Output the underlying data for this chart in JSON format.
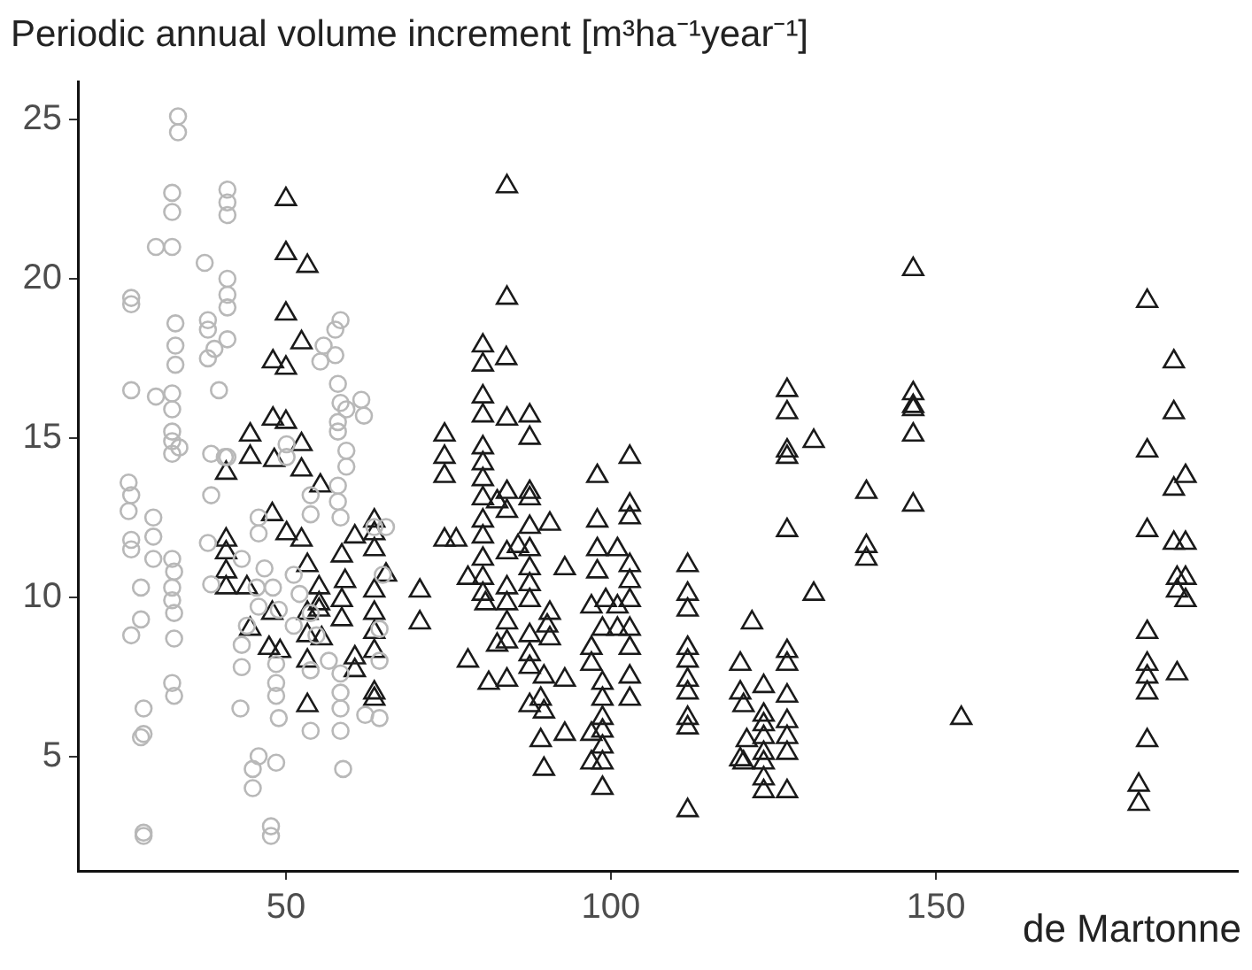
{
  "chart_data": {
    "type": "scatter",
    "title": "Periodic annual volume increment [m³ha⁻¹year⁻¹]",
    "xlabel": "de Martonne",
    "xlim": [
      18,
      196.5
    ],
    "ylim": [
      1.4,
      26.2
    ],
    "xticks": [
      50,
      100,
      150
    ],
    "yticks": [
      5,
      10,
      15,
      20,
      25
    ],
    "series": [
      {
        "color": "#b8b8b8",
        "marker": "circle",
        "x": [
          33.4,
          33.4,
          32.5,
          32.5,
          41,
          41,
          41,
          30,
          32.5,
          37.5,
          41,
          41,
          41,
          26.2,
          26.2,
          33,
          38,
          38,
          33,
          41,
          39,
          38,
          33,
          58.4,
          57.6,
          55.8,
          55.3,
          57.6,
          26.2,
          30,
          32.5,
          32.5,
          39.7,
          58,
          58.4,
          61.6,
          59.3,
          62,
          58,
          32.5,
          32.5,
          33.6,
          32.5,
          38.5,
          41,
          50.1,
          50.1,
          58,
          59.3,
          59.3,
          25.8,
          26.2,
          25.8,
          29.6,
          29.6,
          38.5,
          53.8,
          53.8,
          58,
          58,
          58.4,
          26.2,
          26.2,
          29.6,
          32.5,
          32.8,
          32.5,
          32.5,
          32.8,
          27.7,
          27.7,
          26.2,
          32.8,
          38,
          43.2,
          45.8,
          45.8,
          46.7,
          45.5,
          45.8,
          48,
          48.9,
          43.2,
          43.2,
          48.5,
          48.5,
          48.5,
          48.9,
          51.2,
          52.1,
          53.8,
          54.7,
          56.6,
          58.4,
          58.4,
          58.4,
          53.8,
          58.4,
          58.8,
          63.6,
          65.4,
          64.9,
          64.4,
          64.4,
          64.4,
          62.2,
          43,
          32.5,
          32.8,
          28.1,
          28.1,
          27.7,
          45.8,
          44.9,
          48.5,
          44.9,
          28.1,
          28.1,
          47.7,
          47.7,
          38.5,
          51.2,
          53.8,
          44,
          40.6
        ],
        "values": [
          25.1,
          24.6,
          22.7,
          22.1,
          22.8,
          22.4,
          22,
          21,
          21,
          20.5,
          20,
          19.5,
          19.1,
          19.4,
          19.2,
          18.6,
          18.7,
          18.4,
          17.9,
          18.1,
          17.8,
          17.5,
          17.3,
          18.7,
          18.4,
          17.9,
          17.4,
          17.6,
          16.5,
          16.3,
          16.4,
          15.9,
          16.5,
          16.7,
          16.1,
          16.2,
          15.9,
          15.7,
          15.5,
          15.2,
          14.9,
          14.7,
          14.5,
          14.5,
          14.4,
          14.8,
          14.4,
          15.2,
          14.6,
          14.1,
          13.6,
          13.2,
          12.7,
          12.5,
          11.9,
          13.2,
          13.2,
          12.6,
          13.5,
          13,
          12.5,
          11.8,
          11.5,
          11.2,
          11.2,
          10.8,
          10.3,
          9.9,
          9.5,
          10.3,
          9.3,
          8.8,
          8.7,
          11.7,
          11.2,
          12.5,
          12,
          10.9,
          10.3,
          9.7,
          10.3,
          9.6,
          8.5,
          7.8,
          7.9,
          7.3,
          6.9,
          6.2,
          10.7,
          10.1,
          9.5,
          8.8,
          8,
          7.6,
          7,
          6.5,
          5.8,
          5.8,
          4.6,
          12.2,
          12.2,
          10.7,
          9,
          8,
          6.2,
          6.3,
          6.5,
          7.3,
          6.9,
          6.5,
          5.7,
          5.6,
          5,
          4.6,
          4.8,
          4,
          2.6,
          2.5,
          2.8,
          2.5,
          10.4,
          9.1,
          7.7,
          9.1,
          14.4
        ]
      },
      {
        "color": "#1a1a1a",
        "marker": "triangle",
        "x": [
          50,
          50,
          53.3,
          50,
          52.4,
          48,
          50,
          48,
          50,
          44.5,
          44.5,
          52.4,
          48.2,
          40.8,
          52.4,
          55.3,
          47.9,
          50.1,
          40.8,
          40.8,
          52.4,
          60.6,
          63.6,
          63.6,
          63.6,
          74.4,
          74.4,
          74.4,
          74.4,
          76.2,
          78,
          40.8,
          40.8,
          44,
          53.3,
          55.1,
          55.1,
          58.6,
          59.1,
          58.6,
          58.6,
          63.6,
          63.6,
          63.6,
          65.4,
          70.6,
          70.6,
          47.9,
          53.3,
          55.1,
          44.5,
          53.3,
          55.5,
          60.6,
          60.6,
          47.4,
          49.1,
          53.3,
          63.6,
          63.6,
          63.6,
          53.3,
          78,
          84.0,
          84.0,
          80.3,
          80.3,
          83.9,
          80.3,
          80.3,
          84.0,
          87.5,
          87.5,
          80.3,
          80.3,
          80.3,
          80.3,
          82.5,
          84.0,
          84.0,
          80.3,
          80.3,
          80.3,
          80.3,
          80.3,
          80.7,
          84.0,
          85.7,
          87.5,
          84.0,
          87.5,
          87.5,
          87.5,
          90.6,
          87.5,
          87.5,
          87.5,
          92.9,
          84.0,
          84.0,
          82.5,
          84.0,
          87.5,
          87.5,
          87.5,
          90.6,
          90.2,
          90.6,
          89.7,
          92.9,
          81.2,
          84.0,
          87.5,
          89.2,
          89.7,
          89.2,
          92.9,
          89.7,
          97.9,
          97.9,
          97.9,
          97.9,
          97.0,
          99.2,
          101.0,
          102.9,
          102.9,
          102.9,
          102.9,
          102.9,
          102.9,
          101.0,
          101.0,
          102.9,
          102.9,
          102.9,
          102.9,
          98.7,
          97.0,
          97.0,
          98.7,
          98.7,
          98.7,
          98.7,
          97.0,
          98.7,
          97.0,
          98.7,
          98.7,
          111.8,
          111.8,
          111.8,
          111.8,
          111.8,
          111.8,
          111.8,
          111.8,
          111.8,
          111.8,
          121.7,
          119.9,
          119.9,
          120.4,
          123.5,
          123.5,
          123.5,
          123.5,
          120.9,
          119.9,
          120.4,
          123.5,
          123.5,
          123.5,
          123.5,
          127.1,
          127.1,
          127.1,
          127.1,
          131.2,
          127.1,
          131.2,
          127.1,
          127.1,
          127.1,
          127.1,
          127.1,
          127.1,
          127.1,
          139.3,
          139.3,
          139.3,
          146.5,
          146.5,
          146.5,
          146.5,
          146.5,
          146.5,
          153.9,
          182.5,
          186.6,
          186.6,
          182.5,
          188.4,
          186.6,
          182.5,
          186.6,
          188.4,
          187.1,
          188.4,
          187.1,
          188.4,
          182.5,
          182.5,
          182.5,
          187.1,
          182.5,
          182.5,
          181.2,
          181.2
        ],
        "values": [
          22.5,
          20.8,
          20.4,
          18.9,
          18,
          17.4,
          17.2,
          15.6,
          15.5,
          15.1,
          14.4,
          14.8,
          14.3,
          13.9,
          14,
          13.5,
          12.6,
          12,
          11.8,
          11.4,
          11.8,
          11.9,
          12.4,
          12,
          11.5,
          15.1,
          14.4,
          13.8,
          11.8,
          11.8,
          10.6,
          10.8,
          10.3,
          10.3,
          11,
          10.3,
          9.8,
          11.3,
          10.5,
          9.9,
          9.3,
          10.2,
          9.5,
          8.9,
          10.7,
          10.2,
          9.2,
          9.5,
          9.5,
          9.6,
          9,
          8.8,
          8.7,
          8.1,
          7.7,
          8.4,
          8.3,
          8,
          8.3,
          7,
          6.8,
          6.6,
          8,
          22.9,
          19.4,
          17.9,
          17.3,
          17.5,
          16.3,
          15.7,
          15.6,
          15.7,
          15,
          14.7,
          14.2,
          13.7,
          13.1,
          13,
          13.3,
          12.7,
          12.4,
          11.9,
          11.2,
          10.6,
          10.1,
          9.8,
          11.4,
          11.6,
          11.5,
          10.3,
          13.3,
          13.1,
          12.2,
          12.3,
          10.9,
          10.4,
          9.9,
          10.9,
          9.8,
          9.2,
          8.5,
          8.6,
          8.8,
          8.2,
          7.8,
          9.5,
          9.1,
          8.7,
          7.5,
          7.4,
          7.3,
          7.4,
          6.6,
          6.8,
          6.4,
          5.5,
          5.7,
          4.6,
          13.8,
          12.4,
          11.5,
          10.8,
          9.7,
          9.9,
          11.5,
          14.4,
          12.9,
          12.5,
          11,
          10.5,
          9.9,
          9.7,
          9,
          9,
          8.4,
          7.5,
          6.8,
          9,
          8.4,
          7.9,
          7.3,
          6.8,
          6.2,
          5.8,
          5.7,
          5.3,
          4.8,
          4.8,
          4,
          11,
          10.1,
          9.6,
          8.4,
          8,
          7.4,
          7,
          6.2,
          5.9,
          3.3,
          9.2,
          7.9,
          7,
          6.6,
          7.2,
          6.3,
          6,
          5.6,
          5.5,
          4.9,
          4.8,
          5.1,
          4.8,
          4.3,
          3.9,
          16.5,
          15.8,
          14.6,
          14.4,
          14.9,
          12.1,
          10.1,
          8.3,
          7.9,
          6.9,
          6.1,
          5.6,
          5.1,
          3.9,
          13.3,
          11.6,
          11.2,
          20.3,
          16.4,
          16,
          15.9,
          15.1,
          12.9,
          6.2,
          19.3,
          17.4,
          15.8,
          14.6,
          13.8,
          13.4,
          12.1,
          11.7,
          11.7,
          10.6,
          10.6,
          10.2,
          9.9,
          8.9,
          7.9,
          7.5,
          7.6,
          7,
          5.5,
          4.1,
          3.5
        ]
      }
    ]
  }
}
